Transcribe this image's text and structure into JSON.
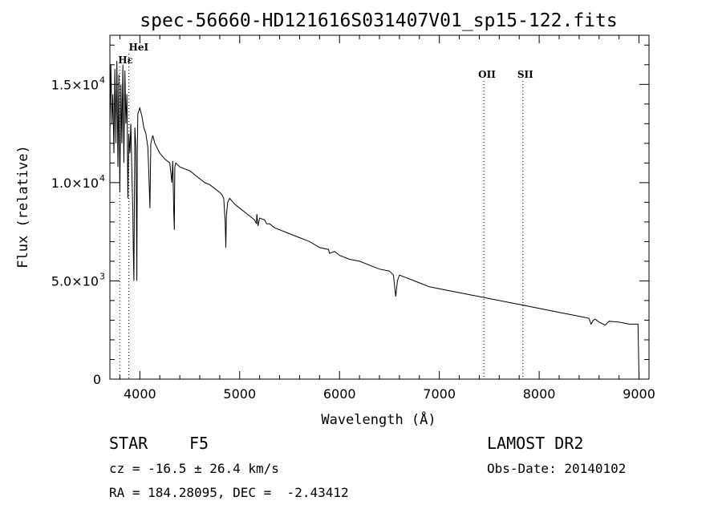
{
  "chart_data": {
    "type": "line",
    "title": "spec-56660-HD121616S031407V01_sp15-122.fits",
    "xlabel": "Wavelength (Å)",
    "ylabel": "Flux (relative)",
    "xlim": [
      3700,
      9100
    ],
    "ylim": [
      0,
      17500
    ],
    "xticks": [
      4000,
      5000,
      6000,
      7000,
      8000,
      9000
    ],
    "yticks": [
      {
        "value": 0,
        "label": "0",
        "exp": ""
      },
      {
        "value": 5000,
        "label": "5.0×10",
        "exp": "3"
      },
      {
        "value": 10000,
        "label": "1.0×10",
        "exp": "4"
      },
      {
        "value": 15000,
        "label": "1.5×10",
        "exp": "4"
      }
    ],
    "line_markers": [
      {
        "name": "Hε",
        "x": 3798
      },
      {
        "name": "HeI",
        "x": 3889
      },
      {
        "name": "OII",
        "x": 7446
      },
      {
        "name": "SII",
        "x": 7837
      }
    ],
    "series": [
      {
        "x": [
          3700,
          3710,
          3720,
          3730,
          3740,
          3750,
          3760,
          3770,
          3780,
          3790,
          3800,
          3810,
          3820,
          3830,
          3840,
          3850,
          3860,
          3870,
          3880,
          3890,
          3900,
          3910,
          3920,
          3930,
          3935,
          3940,
          3950,
          3960,
          3965,
          3970,
          3975,
          3980,
          4000,
          4020,
          4040,
          4060,
          4080,
          4090,
          4101,
          4110,
          4130,
          4150,
          4200,
          4250,
          4300,
          4320,
          4330,
          4340,
          4345,
          4350,
          4360,
          4380,
          4400,
          4450,
          4500,
          4550,
          4600,
          4650,
          4700,
          4750,
          4800,
          4820,
          4840,
          4855,
          4861,
          4867,
          4880,
          4900,
          4950,
          5000,
          5050,
          5100,
          5150,
          5167,
          5172,
          5183,
          5200,
          5250,
          5270,
          5300,
          5350,
          5400,
          5450,
          5500,
          5600,
          5700,
          5800,
          5890,
          5900,
          5950,
          6000,
          6100,
          6200,
          6300,
          6400,
          6500,
          6540,
          6563,
          6580,
          6600,
          6700,
          6800,
          6900,
          7000,
          7100,
          7200,
          7300,
          7400,
          7500,
          7600,
          7700,
          7800,
          7900,
          8000,
          8100,
          8200,
          8300,
          8400,
          8498,
          8520,
          8542,
          8560,
          8600,
          8662,
          8700,
          8800,
          8900,
          8990,
          9000,
          9010
        ],
        "y": [
          12500,
          16000,
          13000,
          14500,
          11500,
          15800,
          12000,
          16200,
          10800,
          15500,
          9500,
          15000,
          12000,
          16000,
          11000,
          15700,
          13000,
          14500,
          9200,
          12500,
          11500,
          13000,
          10500,
          8500,
          6500,
          5000,
          12800,
          11800,
          9000,
          5000,
          11500,
          13500,
          13800,
          13400,
          12800,
          12500,
          11800,
          10500,
          8700,
          12000,
          12400,
          12000,
          11500,
          11200,
          11000,
          10000,
          11100,
          8500,
          7600,
          10800,
          11000,
          10900,
          10800,
          10700,
          10600,
          10400,
          10200,
          10000,
          9900,
          9700,
          9500,
          9400,
          9200,
          8000,
          6700,
          8300,
          9000,
          9200,
          8900,
          8700,
          8500,
          8300,
          8100,
          7900,
          8400,
          7800,
          8200,
          8100,
          7900,
          7900,
          7700,
          7600,
          7500,
          7400,
          7200,
          7000,
          6700,
          6600,
          6400,
          6500,
          6300,
          6100,
          6000,
          5800,
          5600,
          5500,
          5300,
          4200,
          5000,
          5300,
          5100,
          4900,
          4700,
          4600,
          4500,
          4400,
          4300,
          4200,
          4100,
          4000,
          3900,
          3800,
          3700,
          3600,
          3500,
          3400,
          3300,
          3200,
          3100,
          2800,
          3000,
          3050,
          2900,
          2750,
          2950,
          2900,
          2800,
          2800,
          0,
          0
        ]
      }
    ]
  },
  "footer": {
    "object_type": "STAR",
    "subclass": "F5",
    "survey": "LAMOST DR2",
    "cz": "cz = -16.5 ± 26.4 km/s",
    "obs_date": "Obs-Date: 20140102",
    "coords": "RA = 184.28095, DEC =  -2.43412"
  }
}
